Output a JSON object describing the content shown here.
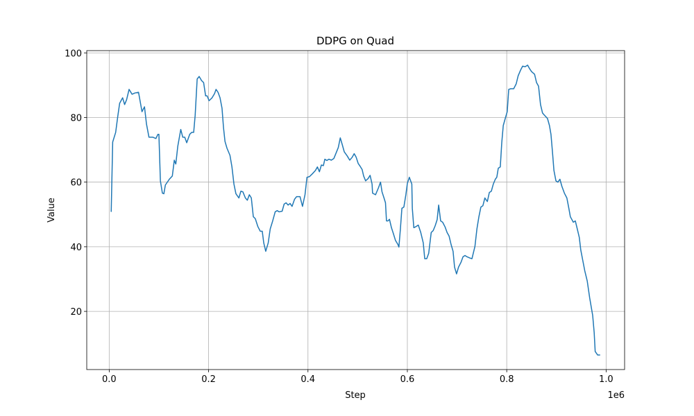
{
  "chart_data": {
    "type": "line",
    "title": "DDPG on Quad",
    "x_label": "Step",
    "y_label": "Value",
    "x_offset_label": "1e6",
    "color": "#1f77b4",
    "grid": true,
    "xlim": [
      -45200,
      1037200
    ],
    "ylim": [
      2.0,
      100.7
    ],
    "xticks": [
      {
        "value": 0,
        "label": "0.0"
      },
      {
        "value": 200000,
        "label": "0.2"
      },
      {
        "value": 400000,
        "label": "0.4"
      },
      {
        "value": 600000,
        "label": "0.6"
      },
      {
        "value": 800000,
        "label": "0.8"
      },
      {
        "value": 1000000,
        "label": "1.0"
      }
    ],
    "yticks": [
      20,
      40,
      60,
      80,
      100
    ],
    "x": [
      4000,
      7000,
      13000,
      17000,
      21000,
      27000,
      31000,
      35000,
      40000,
      46000,
      52000,
      59000,
      66000,
      71000,
      75000,
      80000,
      88000,
      94000,
      98000,
      100000,
      103000,
      107000,
      110000,
      113000,
      121000,
      127000,
      131000,
      134000,
      138000,
      144000,
      148000,
      152000,
      156000,
      162000,
      166000,
      170000,
      173000,
      177000,
      181000,
      186000,
      190000,
      194000,
      197000,
      201000,
      207000,
      212000,
      215000,
      219000,
      223000,
      227000,
      230000,
      233000,
      237000,
      243000,
      247000,
      251000,
      255000,
      261000,
      265000,
      269000,
      274000,
      278000,
      282000,
      286000,
      290000,
      294000,
      299000,
      304000,
      308000,
      311000,
      315000,
      320000,
      324000,
      329000,
      334000,
      338000,
      342000,
      348000,
      352000,
      356000,
      360000,
      364000,
      368000,
      373000,
      377000,
      384000,
      389000,
      394000,
      398000,
      403000,
      409000,
      415000,
      419000,
      423000,
      427000,
      431000,
      434000,
      438000,
      442000,
      447000,
      452000,
      456000,
      461000,
      465000,
      469000,
      473000,
      479000,
      484000,
      489000,
      493000,
      497000,
      501000,
      505000,
      509000,
      512000,
      516000,
      521000,
      525000,
      529000,
      530000,
      536000,
      542000,
      546000,
      549000,
      553000,
      556000,
      558000,
      561000,
      564000,
      568000,
      572000,
      576000,
      581000,
      583000,
      586000,
      589000,
      593000,
      597000,
      600000,
      604000,
      609000,
      610000,
      613000,
      618000,
      622000,
      627000,
      632000,
      635000,
      639000,
      643000,
      648000,
      652000,
      656000,
      660000,
      663000,
      667000,
      671000,
      676000,
      680000,
      684000,
      688000,
      692000,
      695000,
      699000,
      703000,
      708000,
      712000,
      716000,
      720000,
      726000,
      730000,
      736000,
      740000,
      744000,
      748000,
      752000,
      756000,
      761000,
      765000,
      769000,
      773000,
      777000,
      780000,
      783000,
      787000,
      790000,
      793000,
      797000,
      801000,
      804000,
      808000,
      814000,
      819000,
      823000,
      828000,
      832000,
      837000,
      842000,
      846000,
      850000,
      856000,
      860000,
      864000,
      868000,
      872000,
      876000,
      882000,
      886000,
      889000,
      892000,
      895000,
      899000,
      903000,
      907000,
      911000,
      916000,
      921000,
      925000,
      928000,
      934000,
      938000,
      942000,
      946000,
      949000,
      953000,
      957000,
      962000,
      967000,
      973000,
      976000,
      978000,
      983000,
      988000
    ],
    "values": [
      50.8,
      72.4,
      75.4,
      80.1,
      84.4,
      86.1,
      84.0,
      85.5,
      88.7,
      87.2,
      87.6,
      87.8,
      81.8,
      83.3,
      78.0,
      73.9,
      73.9,
      73.5,
      74.8,
      74.8,
      60.4,
      56.6,
      56.4,
      59.1,
      60.9,
      61.9,
      66.8,
      65.6,
      71.1,
      76.3,
      73.9,
      73.9,
      72.2,
      74.8,
      75.4,
      75.4,
      80.7,
      91.9,
      92.7,
      91.4,
      90.8,
      86.7,
      86.7,
      85.2,
      86.1,
      87.4,
      88.7,
      87.8,
      86.1,
      82.9,
      76.9,
      72.6,
      70.5,
      68.3,
      64.7,
      59.4,
      56.4,
      55.1,
      57.2,
      57.0,
      55.1,
      54.4,
      56.1,
      55.1,
      49.3,
      48.7,
      46.3,
      44.8,
      44.8,
      41.2,
      38.6,
      41.2,
      45.5,
      48.0,
      50.8,
      51.2,
      50.8,
      51.0,
      53.2,
      53.6,
      52.9,
      53.4,
      52.5,
      54.7,
      55.5,
      55.5,
      52.5,
      56.1,
      61.5,
      61.7,
      62.6,
      63.6,
      64.7,
      63.2,
      65.3,
      65.1,
      67.1,
      66.7,
      67.1,
      66.8,
      67.3,
      68.8,
      70.7,
      73.7,
      71.6,
      69.4,
      68.1,
      66.8,
      67.7,
      68.8,
      67.7,
      65.8,
      64.9,
      63.9,
      61.9,
      60.4,
      61.1,
      62.1,
      59.4,
      56.6,
      56.1,
      58.3,
      60.0,
      57.0,
      55.1,
      53.6,
      48.0,
      48.0,
      48.5,
      45.9,
      44.0,
      42.0,
      40.7,
      39.9,
      45.5,
      51.9,
      52.3,
      56.1,
      59.6,
      61.5,
      59.4,
      51.9,
      45.9,
      46.3,
      46.7,
      44.4,
      41.2,
      36.3,
      36.3,
      38.0,
      44.4,
      45.0,
      46.5,
      48.4,
      52.9,
      48.0,
      47.6,
      46.1,
      44.4,
      43.3,
      40.7,
      38.6,
      33.7,
      31.6,
      33.7,
      35.2,
      36.9,
      37.3,
      36.9,
      36.5,
      36.3,
      40.1,
      45.5,
      49.3,
      52.3,
      52.7,
      55.1,
      54.0,
      56.8,
      57.2,
      59.4,
      60.9,
      61.5,
      64.3,
      64.7,
      72.2,
      77.5,
      79.7,
      81.8,
      88.7,
      88.9,
      88.9,
      90.4,
      92.9,
      94.7,
      95.9,
      95.7,
      96.2,
      95.1,
      94.2,
      93.4,
      90.8,
      89.7,
      84.0,
      81.4,
      80.7,
      79.7,
      77.5,
      74.8,
      69.4,
      63.6,
      60.4,
      60.0,
      60.9,
      58.7,
      56.6,
      55.1,
      51.9,
      49.3,
      47.6,
      48.0,
      45.5,
      42.9,
      39.0,
      35.8,
      32.6,
      29.4,
      24.1,
      18.7,
      13.4,
      7.6,
      6.5,
      6.5
    ]
  }
}
